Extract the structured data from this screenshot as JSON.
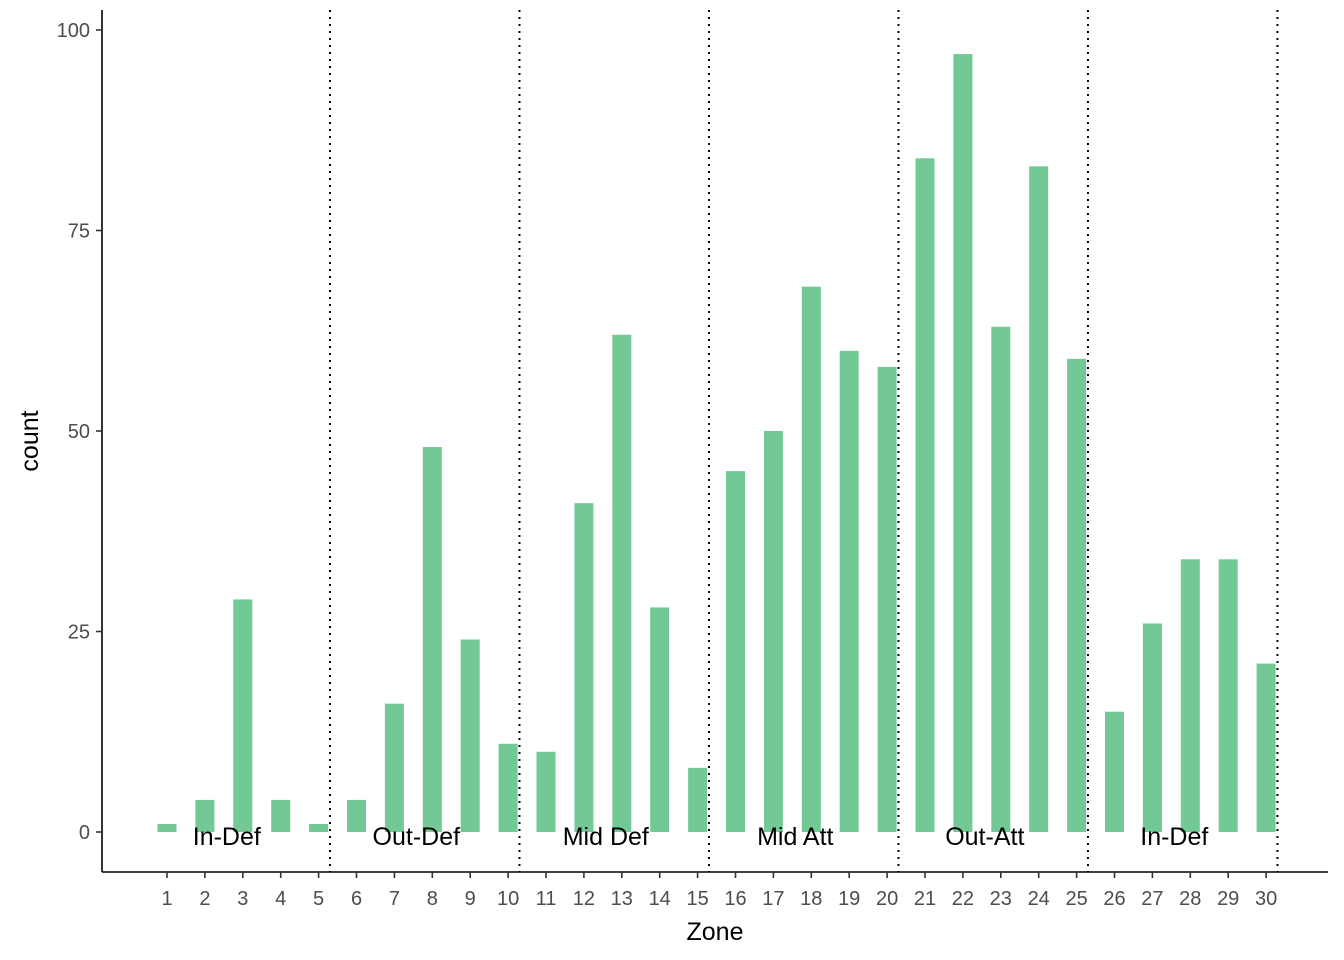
{
  "chart_data": {
    "type": "bar",
    "title": "",
    "xlabel": "Zone",
    "ylabel": "count",
    "categories": [
      "1",
      "2",
      "3",
      "4",
      "5",
      "6",
      "7",
      "8",
      "9",
      "10",
      "11",
      "12",
      "13",
      "14",
      "15",
      "16",
      "17",
      "18",
      "19",
      "20",
      "21",
      "22",
      "23",
      "24",
      "25",
      "26",
      "27",
      "28",
      "29",
      "30"
    ],
    "values": [
      1,
      4,
      29,
      4,
      1,
      4,
      16,
      48,
      24,
      11,
      10,
      41,
      62,
      28,
      8,
      45,
      50,
      68,
      60,
      58,
      84,
      97,
      63,
      83,
      59,
      15,
      26,
      34,
      34,
      21
    ],
    "ylim": [
      -5,
      102
    ],
    "yticks": [
      0,
      25,
      50,
      75,
      100
    ],
    "grid": false,
    "legend": "none",
    "bar_color": "#72c995",
    "divider_lines_after_zone": [
      5,
      10,
      15,
      20,
      25,
      30
    ],
    "zone_groups": [
      {
        "label": "In-Def",
        "center": 3
      },
      {
        "label": "Out-Def",
        "center": 8
      },
      {
        "label": "Mid Def",
        "center": 13
      },
      {
        "label": "Mid Att",
        "center": 18
      },
      {
        "label": "Out-Att",
        "center": 23
      },
      {
        "label": "In-Def",
        "center": 28
      }
    ]
  }
}
